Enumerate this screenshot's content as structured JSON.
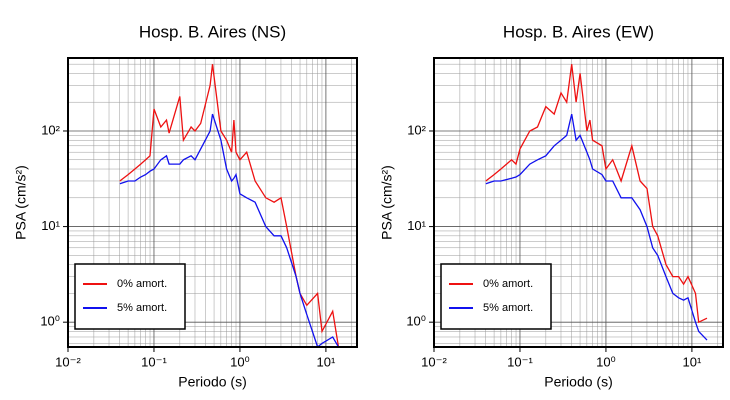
{
  "chart_data": [
    {
      "type": "line",
      "title": "Hosp. B. Aires (NS)",
      "xlabel": "Periodo (s)",
      "ylabel": "PSA (cm/s²)",
      "xscale": "log",
      "yscale": "log",
      "grid": true,
      "legend": "lower left",
      "xlim": [
        0.01,
        23
      ],
      "ylim": [
        0.55,
        580
      ],
      "xticks": [
        {
          "value": 0.01,
          "label": "10⁻²"
        },
        {
          "value": 0.1,
          "label": "10⁻¹"
        },
        {
          "value": 1,
          "label": "10⁰"
        },
        {
          "value": 10,
          "label": "10¹"
        }
      ],
      "yticks": [
        {
          "value": 1,
          "label": "10⁰"
        },
        {
          "value": 10,
          "label": "10¹"
        },
        {
          "value": 100,
          "label": "10²"
        }
      ],
      "x": [
        0.04,
        0.05,
        0.06,
        0.07,
        0.08,
        0.09,
        0.1,
        0.12,
        0.14,
        0.15,
        0.2,
        0.22,
        0.27,
        0.3,
        0.35,
        0.45,
        0.48,
        0.6,
        0.7,
        0.8,
        0.85,
        0.9,
        1.0,
        1.2,
        1.5,
        2,
        2.5,
        3,
        3.5,
        4.5,
        5,
        6,
        8,
        9,
        12,
        14
      ],
      "series": [
        {
          "name": "0% amort.",
          "color": "#ee1111",
          "values": [
            30,
            35,
            40,
            45,
            50,
            55,
            170,
            110,
            130,
            95,
            230,
            80,
            110,
            100,
            120,
            300,
            500,
            100,
            80,
            60,
            130,
            60,
            50,
            60,
            30,
            20,
            18,
            20,
            10,
            3,
            2,
            1.5,
            2,
            0.8,
            1.3,
            0.55
          ]
        },
        {
          "name": "5% amort.",
          "color": "#1111ee",
          "values": [
            28,
            30,
            30,
            33,
            35,
            38,
            40,
            50,
            55,
            45,
            45,
            50,
            55,
            50,
            65,
            100,
            150,
            80,
            40,
            30,
            32,
            35,
            22,
            20,
            18,
            10,
            8,
            8,
            6,
            3,
            2,
            1.2,
            0.55,
            0.6,
            0.7,
            0.55
          ]
        }
      ]
    },
    {
      "type": "line",
      "title": "Hosp. B. Aires (EW)",
      "xlabel": "Periodo (s)",
      "ylabel": "PSA (cm/s²)",
      "xscale": "log",
      "yscale": "log",
      "grid": true,
      "legend": "lower left",
      "xlim": [
        0.01,
        23
      ],
      "ylim": [
        0.55,
        580
      ],
      "xticks": [
        {
          "value": 0.01,
          "label": "10⁻²"
        },
        {
          "value": 0.1,
          "label": "10⁻¹"
        },
        {
          "value": 1,
          "label": "10⁰"
        },
        {
          "value": 10,
          "label": "10¹"
        }
      ],
      "yticks": [
        {
          "value": 1,
          "label": "10⁰"
        },
        {
          "value": 10,
          "label": "10¹"
        },
        {
          "value": 100,
          "label": "10²"
        }
      ],
      "x": [
        0.04,
        0.05,
        0.06,
        0.08,
        0.09,
        0.1,
        0.13,
        0.16,
        0.2,
        0.25,
        0.3,
        0.35,
        0.4,
        0.45,
        0.5,
        0.6,
        0.65,
        0.7,
        0.9,
        1.0,
        1.2,
        1.5,
        2,
        2.5,
        3,
        3.5,
        4,
        5,
        6,
        7,
        8,
        9,
        11,
        12,
        15
      ],
      "series": [
        {
          "name": "0% amort.",
          "color": "#ee1111",
          "values": [
            30,
            35,
            40,
            50,
            45,
            65,
            100,
            110,
            180,
            150,
            250,
            200,
            500,
            200,
            400,
            100,
            130,
            80,
            70,
            40,
            50,
            30,
            70,
            30,
            25,
            10,
            8,
            4,
            3,
            3,
            2.5,
            3,
            2,
            1,
            1.1
          ]
        },
        {
          "name": "5% amort.",
          "color": "#1111ee",
          "values": [
            28,
            30,
            30,
            32,
            33,
            35,
            45,
            50,
            55,
            70,
            80,
            90,
            150,
            80,
            90,
            60,
            50,
            40,
            35,
            30,
            30,
            20,
            20,
            15,
            10,
            6,
            5,
            3,
            2,
            1.8,
            1.7,
            1.8,
            1.0,
            0.8,
            0.65
          ]
        }
      ]
    }
  ]
}
